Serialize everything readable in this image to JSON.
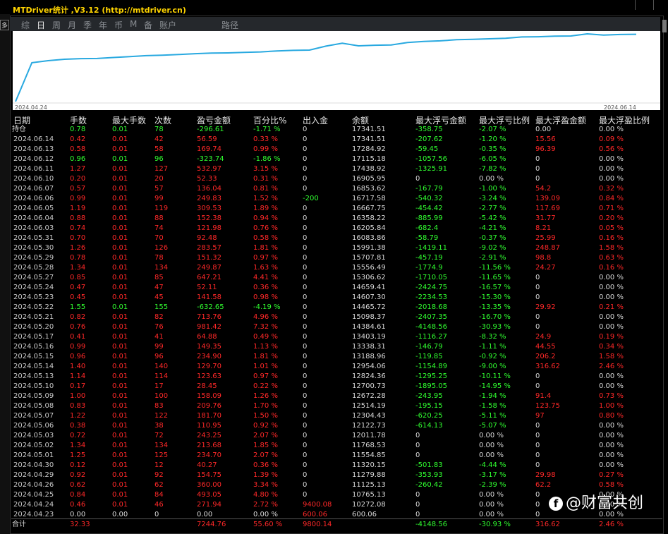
{
  "window": {
    "title": "MTDriver统计 ,V3.12 (http://mtdriver.cn)"
  },
  "sidebar": {
    "label": "多"
  },
  "tabs": [
    "综",
    "日",
    "周",
    "月",
    "季",
    "年",
    "币",
    "M",
    "备",
    "账户",
    "路径"
  ],
  "active_tab": "日",
  "chart_data": {
    "type": "line",
    "title": "",
    "xlabel": "",
    "ylabel": "",
    "color": "#29a9e0",
    "x_start": "2024.04.24",
    "x_end": "2024.06.14",
    "x": [
      "2024.04.23",
      "2024.04.24",
      "2024.04.25",
      "2024.04.26",
      "2024.04.29",
      "2024.04.30",
      "2024.05.01",
      "2024.05.02",
      "2024.05.03",
      "2024.05.06",
      "2024.05.07",
      "2024.05.08",
      "2024.05.09",
      "2024.05.10",
      "2024.05.13",
      "2024.05.14",
      "2024.05.15",
      "2024.05.16",
      "2024.05.17",
      "2024.05.20",
      "2024.05.21",
      "2024.05.22",
      "2024.05.23",
      "2024.05.24",
      "2024.05.27",
      "2024.05.28",
      "2024.05.29",
      "2024.05.30",
      "2024.05.31",
      "2024.06.03",
      "2024.06.04",
      "2024.06.05",
      "2024.06.06",
      "2024.06.07",
      "2024.06.10",
      "2024.06.11",
      "2024.06.12",
      "2024.06.13",
      "2024.06.14"
    ],
    "values": [
      600.06,
      10272.08,
      10765.13,
      11125.13,
      11279.88,
      11320.15,
      11554.85,
      11768.53,
      12011.78,
      12122.73,
      12304.43,
      12514.19,
      12672.28,
      12700.73,
      12824.36,
      12954.06,
      13188.96,
      13338.31,
      13403.19,
      14384.61,
      15098.37,
      14465.72,
      14607.3,
      14659.41,
      15306.62,
      15556.49,
      15707.81,
      15991.38,
      16083.86,
      16205.84,
      16358.22,
      16667.75,
      16717.58,
      16853.62,
      16905.95,
      17438.92,
      17115.18,
      17284.92,
      17341.51
    ]
  },
  "table": {
    "headers": [
      "日期",
      "手数",
      "最大手数",
      "次数",
      "盈亏金额",
      "百分比%",
      "出入金",
      "余额",
      "最大浮亏金额",
      "最大浮亏比例",
      "最大浮盈金额",
      "最大浮盈比例"
    ],
    "holding": {
      "label": "持仓",
      "cells": [
        "0.78",
        "0.01",
        "78",
        "-296.61",
        "-1.71 %",
        "0",
        "17341.51",
        "-358.75",
        "-2.07 %",
        "0.00",
        "0.00 %"
      ]
    },
    "rows": [
      [
        "2024.06.14",
        "0.42",
        "0.01",
        "42",
        "56.59",
        "0.33 %",
        "0",
        "17341.51",
        "-207.62",
        "-1.20 %",
        "15.56",
        "0.09 %"
      ],
      [
        "2024.06.13",
        "0.58",
        "0.01",
        "58",
        "169.74",
        "0.99 %",
        "0",
        "17284.92",
        "-59.45",
        "-0.35 %",
        "96.39",
        "0.56 %"
      ],
      [
        "2024.06.12",
        "0.96",
        "0.01",
        "96",
        "-323.74",
        "-1.86 %",
        "0",
        "17115.18",
        "-1057.56",
        "-6.05 %",
        "0",
        "0.00 %"
      ],
      [
        "2024.06.11",
        "1.27",
        "0.01",
        "127",
        "532.97",
        "3.15 %",
        "0",
        "17438.92",
        "-1325.91",
        "-7.82 %",
        "0",
        "0.00 %"
      ],
      [
        "2024.06.10",
        "0.20",
        "0.01",
        "20",
        "52.33",
        "0.31 %",
        "0",
        "16905.95",
        "0",
        "0.00 %",
        "0",
        "0.00 %"
      ],
      [
        "2024.06.07",
        "0.57",
        "0.01",
        "57",
        "136.04",
        "0.81 %",
        "0",
        "16853.62",
        "-167.79",
        "-1.00 %",
        "54.2",
        "0.32 %"
      ],
      [
        "2024.06.06",
        "0.99",
        "0.01",
        "99",
        "249.83",
        "1.52 %",
        "-200",
        "16717.58",
        "-540.32",
        "-3.24 %",
        "139.09",
        "0.84 %"
      ],
      [
        "2024.06.05",
        "1.19",
        "0.01",
        "119",
        "309.53",
        "1.89 %",
        "0",
        "16667.75",
        "-454.42",
        "-2.77 %",
        "117.69",
        "0.71 %"
      ],
      [
        "2024.06.04",
        "0.88",
        "0.01",
        "88",
        "152.38",
        "0.94 %",
        "0",
        "16358.22",
        "-885.99",
        "-5.42 %",
        "31.77",
        "0.20 %"
      ],
      [
        "2024.06.03",
        "0.74",
        "0.01",
        "74",
        "121.98",
        "0.76 %",
        "0",
        "16205.84",
        "-682.4",
        "-4.21 %",
        "8.21",
        "0.05 %"
      ],
      [
        "2024.05.31",
        "0.70",
        "0.01",
        "70",
        "92.48",
        "0.58 %",
        "0",
        "16083.86",
        "-58.79",
        "-0.37 %",
        "25.99",
        "0.16 %"
      ],
      [
        "2024.05.30",
        "1.26",
        "0.01",
        "126",
        "283.57",
        "1.81 %",
        "0",
        "15991.38",
        "-1419.11",
        "-9.02 %",
        "248.87",
        "1.58 %"
      ],
      [
        "2024.05.29",
        "0.78",
        "0.01",
        "78",
        "151.32",
        "0.97 %",
        "0",
        "15707.81",
        "-457.19",
        "-2.91 %",
        "98.8",
        "0.63 %"
      ],
      [
        "2024.05.28",
        "1.34",
        "0.01",
        "134",
        "249.87",
        "1.63 %",
        "0",
        "15556.49",
        "-1774.9",
        "-11.56 %",
        "24.27",
        "0.16 %"
      ],
      [
        "2024.05.27",
        "0.85",
        "0.01",
        "85",
        "647.21",
        "4.41 %",
        "0",
        "15306.62",
        "-1710.05",
        "-11.65 %",
        "0",
        "0.00 %"
      ],
      [
        "2024.05.24",
        "0.47",
        "0.01",
        "47",
        "52.11",
        "0.36 %",
        "0",
        "14659.41",
        "-2424.75",
        "-16.57 %",
        "0",
        "0.00 %"
      ],
      [
        "2024.05.23",
        "0.45",
        "0.01",
        "45",
        "141.58",
        "0.98 %",
        "0",
        "14607.30",
        "-2234.53",
        "-15.30 %",
        "0",
        "0.00 %"
      ],
      [
        "2024.05.22",
        "1.55",
        "0.01",
        "155",
        "-632.65",
        "-4.19 %",
        "0",
        "14465.72",
        "-2018.68",
        "-13.35 %",
        "29.92",
        "0.21 %"
      ],
      [
        "2024.05.21",
        "0.82",
        "0.01",
        "82",
        "713.76",
        "4.96 %",
        "0",
        "15098.37",
        "-2407.35",
        "-16.70 %",
        "0",
        "0.00 %"
      ],
      [
        "2024.05.20",
        "0.76",
        "0.01",
        "76",
        "981.42",
        "7.32 %",
        "0",
        "14384.61",
        "-4148.56",
        "-30.93 %",
        "0",
        "0.00 %"
      ],
      [
        "2024.05.17",
        "0.41",
        "0.01",
        "41",
        "64.88",
        "0.49 %",
        "0",
        "13403.19",
        "-1116.27",
        "-8.32 %",
        "24.9",
        "0.19 %"
      ],
      [
        "2024.05.16",
        "0.99",
        "0.01",
        "99",
        "149.35",
        "1.13 %",
        "0",
        "13338.31",
        "-146.79",
        "-1.11 %",
        "44.55",
        "0.34 %"
      ],
      [
        "2024.05.15",
        "0.96",
        "0.01",
        "96",
        "234.90",
        "1.81 %",
        "0",
        "13188.96",
        "-119.85",
        "-0.92 %",
        "206.2",
        "1.58 %"
      ],
      [
        "2024.05.14",
        "1.40",
        "0.01",
        "140",
        "129.70",
        "1.01 %",
        "0",
        "12954.06",
        "-1154.89",
        "-9.00 %",
        "316.62",
        "2.46 %"
      ],
      [
        "2024.05.13",
        "1.14",
        "0.01",
        "114",
        "123.63",
        "0.97 %",
        "0",
        "12824.36",
        "-1295.25",
        "-10.11 %",
        "0",
        "0.00 %"
      ],
      [
        "2024.05.10",
        "0.17",
        "0.01",
        "17",
        "28.45",
        "0.22 %",
        "0",
        "12700.73",
        "-1895.05",
        "-14.95 %",
        "0",
        "0.00 %"
      ],
      [
        "2024.05.09",
        "1.00",
        "0.01",
        "100",
        "158.09",
        "1.26 %",
        "0",
        "12672.28",
        "-243.95",
        "-1.94 %",
        "91.4",
        "0.73 %"
      ],
      [
        "2024.05.08",
        "0.83",
        "0.01",
        "83",
        "209.76",
        "1.70 %",
        "0",
        "12514.19",
        "-195.15",
        "-1.58 %",
        "123.75",
        "1.00 %"
      ],
      [
        "2024.05.07",
        "1.22",
        "0.01",
        "122",
        "181.70",
        "1.50 %",
        "0",
        "12304.43",
        "-620.25",
        "-5.11 %",
        "97",
        "0.80 %"
      ],
      [
        "2024.05.06",
        "0.38",
        "0.01",
        "38",
        "110.95",
        "0.92 %",
        "0",
        "12122.73",
        "-614.13",
        "-5.07 %",
        "0",
        "0.00 %"
      ],
      [
        "2024.05.03",
        "0.72",
        "0.01",
        "72",
        "243.25",
        "2.07 %",
        "0",
        "12011.78",
        "0",
        "0.00 %",
        "0",
        "0.00 %"
      ],
      [
        "2024.05.02",
        "1.34",
        "0.01",
        "134",
        "213.68",
        "1.85 %",
        "0",
        "11768.53",
        "0",
        "0.00 %",
        "0",
        "0.00 %"
      ],
      [
        "2024.05.01",
        "1.25",
        "0.01",
        "125",
        "234.70",
        "2.07 %",
        "0",
        "11554.85",
        "0",
        "0.00 %",
        "0",
        "0.00 %"
      ],
      [
        "2024.04.30",
        "0.12",
        "0.01",
        "12",
        "40.27",
        "0.36 %",
        "0",
        "11320.15",
        "-501.83",
        "-4.44 %",
        "0",
        "0.00 %"
      ],
      [
        "2024.04.29",
        "0.92",
        "0.01",
        "92",
        "154.75",
        "1.39 %",
        "0",
        "11279.88",
        "-353.93",
        "-3.17 %",
        "29.98",
        "0.27 %"
      ],
      [
        "2024.04.26",
        "0.62",
        "0.01",
        "62",
        "360.00",
        "3.34 %",
        "0",
        "11125.13",
        "-260.42",
        "-2.39 %",
        "62.2",
        "0.58 %"
      ],
      [
        "2024.04.25",
        "0.84",
        "0.01",
        "84",
        "493.05",
        "4.80 %",
        "0",
        "10765.13",
        "0",
        "0.00 %",
        "0",
        "0.00 %"
      ],
      [
        "2024.04.24",
        "0.46",
        "0.01",
        "46",
        "271.94",
        "2.72 %",
        "9400.08",
        "10272.08",
        "0",
        "0.00 %",
        "0",
        "0.00 %"
      ],
      [
        "2024.04.23",
        "0.00",
        "0.00",
        "0",
        "0.00",
        "0.00 %",
        "600.06",
        "600.06",
        "0",
        "0.00 %",
        "0",
        "0.00 %"
      ]
    ],
    "total": {
      "label": "合计",
      "cells": [
        "32.33",
        "",
        "",
        "7244.76",
        "55.60 %",
        "9800.14",
        "",
        "-4148.56",
        "-30.93 %",
        "316.62",
        "2.46 %"
      ]
    }
  },
  "colors": {
    "positive": "#ff2828",
    "negative": "#30ff30",
    "neutral": "#d8d8d8",
    "header": "#e8e8e8"
  },
  "watermark": {
    "icon": "facebook-icon",
    "text": "@财富共创"
  }
}
